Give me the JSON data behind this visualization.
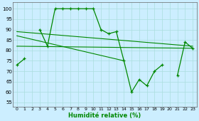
{
  "x": [
    0,
    1,
    2,
    3,
    4,
    5,
    6,
    7,
    8,
    9,
    10,
    11,
    12,
    13,
    14,
    15,
    16,
    17,
    18,
    19,
    20,
    21,
    22,
    23
  ],
  "series_main": [
    73,
    76,
    null,
    90,
    82,
    100,
    100,
    100,
    100,
    100,
    100,
    90,
    88,
    89,
    75,
    60,
    66,
    63,
    70,
    73,
    null,
    68,
    84,
    81
  ],
  "trend1_x": [
    0,
    23
  ],
  "trend1_y": [
    89,
    82
  ],
  "trend2_x": [
    0,
    14
  ],
  "trend2_y": [
    87,
    75
  ],
  "trend3_x": [
    0,
    23
  ],
  "trend3_y": [
    82,
    81
  ],
  "bg_color": "#cceeff",
  "grid_color": "#aadddd",
  "line_color": "#008800",
  "ylabel_values": [
    55,
    60,
    65,
    70,
    75,
    80,
    85,
    90,
    95,
    100
  ],
  "xlabel": "Humidité relative (%)",
  "ylim": [
    53,
    103
  ],
  "xlim": [
    -0.5,
    23.5
  ]
}
